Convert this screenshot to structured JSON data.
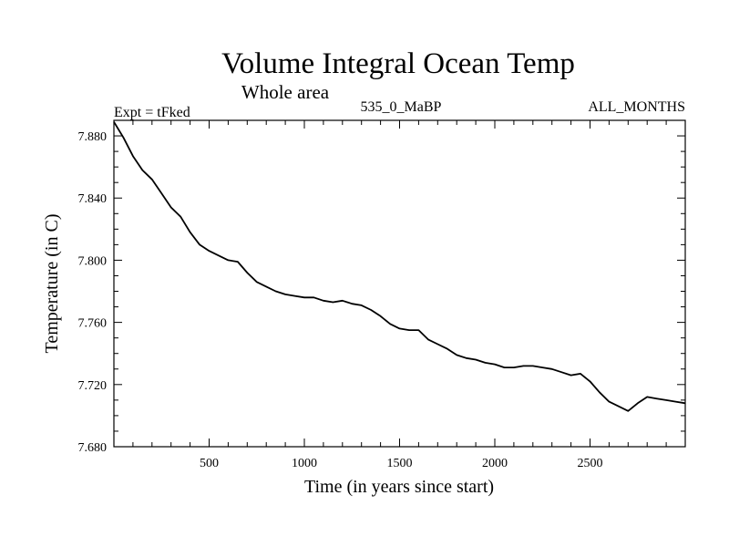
{
  "chart_data": {
    "type": "line",
    "title": "Volume Integral Ocean Temp",
    "subtitle": "Whole area",
    "annotations": {
      "left": "Expt = tFked",
      "center": "535_0_MaBP",
      "right": "ALL_MONTHS"
    },
    "xlabel": "Time (in years since start)",
    "ylabel": "Temperature (in C)",
    "xlim": [
      0,
      3000
    ],
    "ylim": [
      7.68,
      7.89
    ],
    "x_ticks": [
      500,
      1000,
      1500,
      2000,
      2500
    ],
    "x_tick_labels": [
      "500",
      "1000",
      "1500",
      "2000",
      "2500"
    ],
    "y_ticks": [
      7.68,
      7.72,
      7.76,
      7.8,
      7.84,
      7.88
    ],
    "y_tick_labels": [
      "7.680",
      "7.720",
      "7.760",
      "7.800",
      "7.840",
      "7.880"
    ],
    "grid": false,
    "line_color": "#000000",
    "series": [
      {
        "x": [
          0,
          50,
          100,
          150,
          200,
          250,
          300,
          350,
          400,
          450,
          500,
          550,
          600,
          650,
          700,
          750,
          800,
          850,
          900,
          950,
          1000,
          1050,
          1100,
          1150,
          1200,
          1250,
          1300,
          1350,
          1400,
          1450,
          1500,
          1550,
          1600,
          1650,
          1700,
          1750,
          1800,
          1850,
          1900,
          1950,
          2000,
          2050,
          2100,
          2150,
          2200,
          2250,
          2300,
          2350,
          2400,
          2450,
          2500,
          2550,
          2600,
          2650,
          2700,
          2750,
          2800,
          2850,
          2900,
          2950,
          3000
        ],
        "y": [
          7.889,
          7.879,
          7.867,
          7.858,
          7.852,
          7.843,
          7.834,
          7.828,
          7.818,
          7.81,
          7.806,
          7.803,
          7.8,
          7.799,
          7.792,
          7.786,
          7.783,
          7.78,
          7.778,
          7.777,
          7.776,
          7.776,
          7.774,
          7.773,
          7.774,
          7.772,
          7.771,
          7.768,
          7.764,
          7.759,
          7.756,
          7.755,
          7.755,
          7.749,
          7.746,
          7.743,
          7.739,
          7.737,
          7.736,
          7.734,
          7.733,
          7.731,
          7.731,
          7.732,
          7.732,
          7.731,
          7.73,
          7.728,
          7.726,
          7.727,
          7.722,
          7.715,
          7.709,
          7.706,
          7.703,
          7.708,
          7.712,
          7.711,
          7.71,
          7.709,
          7.708
        ]
      }
    ]
  }
}
